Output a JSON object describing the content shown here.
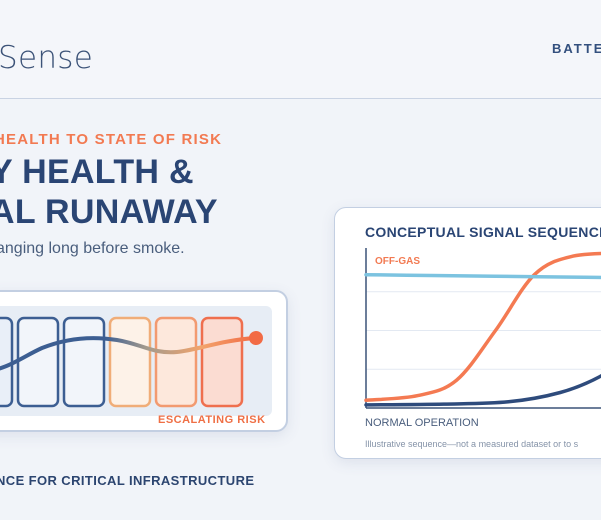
{
  "header": {
    "logo_text": "Sense",
    "nav_link": "BATTE"
  },
  "hero": {
    "eyebrow": "HEALTH TO STATE OF RISK",
    "headline_line1": "Y HEALTH &",
    "headline_line2": "AL RUNAWAY",
    "subtext": "anging long before smoke.",
    "tagline": "NCE FOR CRITICAL INFRASTRUCTURE"
  },
  "risk_card": {
    "label": "ESCALATING RISK",
    "cells": [
      {
        "stroke": "#3c5e92",
        "fill": "#e9eff8"
      },
      {
        "stroke": "#3c5e92",
        "fill": "#f2f5fa"
      },
      {
        "stroke": "#3c5e92",
        "fill": "#f2f5fa"
      },
      {
        "stroke": "#f0ad78",
        "fill": "#fdf2e8"
      },
      {
        "stroke": "#f29a70",
        "fill": "#fde8dc"
      },
      {
        "stroke": "#ef6f4e",
        "fill": "#fbdcd2"
      }
    ],
    "colors": {
      "low": "#3c5e92",
      "high": "#f26b45"
    }
  },
  "chart_card": {
    "title": "CONCEPTUAL SIGNAL SEQUENCE",
    "series_label": "OFF-GAS",
    "x_label": "NORMAL OPERATION",
    "footnote": "Illustrative sequence—not a measured dataset or to s"
  },
  "chart_data": {
    "type": "line",
    "title": "CONCEPTUAL SIGNAL SEQUENCE",
    "xlabel": "NORMAL OPERATION",
    "ylabel": "",
    "grid": true,
    "series": [
      {
        "name": "OFF-GAS",
        "color": "#f47a52",
        "points": [
          [
            0,
            0.05
          ],
          [
            0.2,
            0.08
          ],
          [
            0.35,
            0.18
          ],
          [
            0.5,
            0.5
          ],
          [
            0.65,
            0.86
          ],
          [
            0.8,
            0.98
          ],
          [
            1,
            1
          ]
        ]
      },
      {
        "name": "",
        "color": "#7cc3e0",
        "points": [
          [
            0,
            0.86
          ],
          [
            0.25,
            0.855
          ],
          [
            0.5,
            0.85
          ],
          [
            0.75,
            0.845
          ],
          [
            1,
            0.84
          ]
        ]
      },
      {
        "name": "",
        "color": "#2e4b7c",
        "points": [
          [
            0,
            0.02
          ],
          [
            0.3,
            0.025
          ],
          [
            0.55,
            0.04
          ],
          [
            0.75,
            0.1
          ],
          [
            0.9,
            0.2
          ],
          [
            1,
            0.32
          ]
        ]
      }
    ]
  }
}
